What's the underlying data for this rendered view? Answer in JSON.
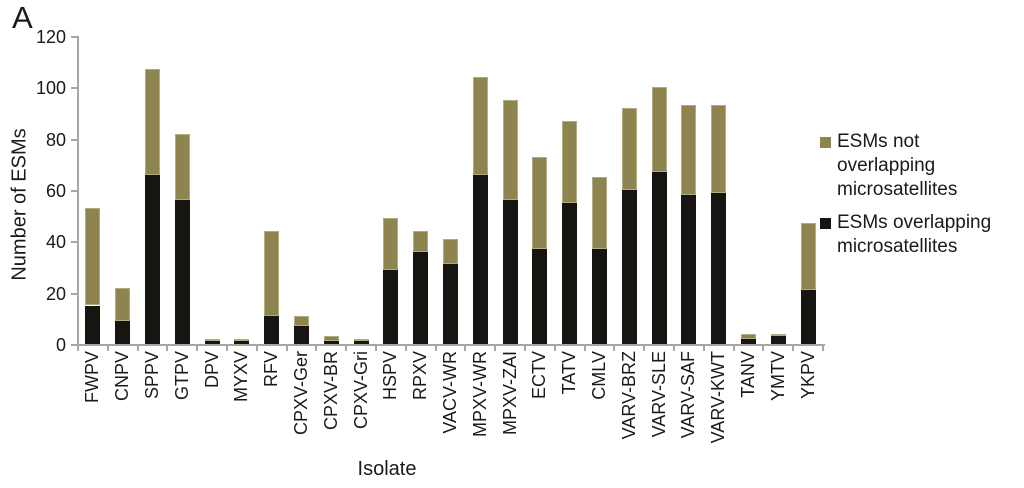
{
  "panel_label": "A",
  "colors": {
    "axis": "#a6a6a6",
    "text": "#1a1a1a",
    "bar_black": "#171512",
    "bar_olive": "#8d8450"
  },
  "chart_data": {
    "type": "bar",
    "stacked": true,
    "title": "",
    "xlabel": "Isolate",
    "ylabel": "Number of ESMs",
    "ylim": [
      0,
      120
    ],
    "yticks": [
      0,
      20,
      40,
      60,
      80,
      100,
      120
    ],
    "grid": false,
    "legend_position": "right",
    "categories": [
      "FWPV",
      "CNPV",
      "SPPV",
      "GTPV",
      "DPV",
      "MYXV",
      "RFV",
      "CPXV-Ger",
      "CPXV-BR",
      "CPXV-Gri",
      "HSPV",
      "RPXV",
      "VACV-WR",
      "MPXV-WR",
      "MPXV-ZAI",
      "ECTV",
      "TATV",
      "CMLV",
      "VARV-BRZ",
      "VARV-SLE",
      "VARV-SAF",
      "VARV-KWT",
      "TANV",
      "YMTV",
      "YKPV"
    ],
    "series": [
      {
        "name": "ESMs overlapping microsatellites",
        "color": "#171512",
        "stack_position": "bottom",
        "values": [
          15,
          9,
          66,
          56,
          1,
          1,
          11,
          7,
          1,
          1,
          29,
          36,
          31,
          66,
          56,
          37,
          55,
          37,
          60,
          67,
          58,
          59,
          2,
          3,
          21
        ]
      },
      {
        "name": "ESMs not overlapping microsatellites",
        "color": "#8d8450",
        "stack_position": "top",
        "values": [
          38,
          13,
          41,
          26,
          1,
          1,
          33,
          4,
          2,
          1,
          20,
          8,
          10,
          38,
          39,
          36,
          32,
          28,
          32,
          33,
          35,
          34,
          2,
          1,
          26
        ]
      }
    ],
    "totals": [
      53,
      22,
      107,
      82,
      2,
      2,
      44,
      11,
      3,
      2,
      49,
      44,
      41,
      104,
      95,
      73,
      87,
      65,
      92,
      100,
      93,
      93,
      4,
      4,
      47
    ]
  }
}
